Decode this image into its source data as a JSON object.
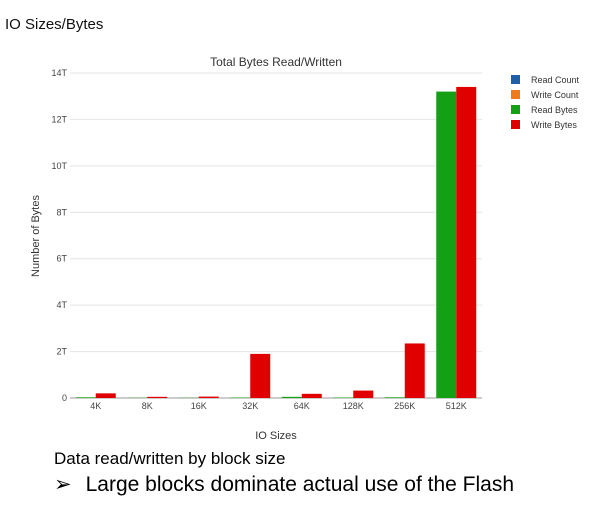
{
  "page_heading": "IO Sizes/Bytes",
  "caption": "Data read/written by block size",
  "bullet": {
    "arrow": "➢",
    "text": "Large blocks dominate actual use of the Flash"
  },
  "chart_data": {
    "type": "bar",
    "title": "Total Bytes Read/Written",
    "xlabel": "IO Sizes",
    "ylabel": "Number of Bytes",
    "ylim": [
      0,
      14
    ],
    "y_ticks": [
      0,
      2,
      4,
      6,
      8,
      10,
      12,
      14
    ],
    "y_tick_labels": [
      "0",
      "2T",
      "4T",
      "6T",
      "8T",
      "10T",
      "12T",
      "14T"
    ],
    "categories": [
      "4K",
      "8K",
      "16K",
      "32K",
      "64K",
      "128K",
      "256K",
      "512K"
    ],
    "grid": true,
    "legend_position": "top-right",
    "legend": [
      {
        "name": "Read Count",
        "color": "#1f5fa8"
      },
      {
        "name": "Write Count",
        "color": "#f07a1a"
      },
      {
        "name": "Read Bytes",
        "color": "#14a014"
      },
      {
        "name": "Write Bytes",
        "color": "#e00000"
      }
    ],
    "series": [
      {
        "name": "Read Bytes",
        "color": "#14a014",
        "values": [
          0.03,
          0.01,
          0.01,
          0.02,
          0.05,
          0.02,
          0.03,
          13.2
        ]
      },
      {
        "name": "Write Bytes",
        "color": "#e00000",
        "values": [
          0.2,
          0.05,
          0.06,
          1.9,
          0.18,
          0.32,
          2.35,
          13.4
        ]
      }
    ]
  }
}
